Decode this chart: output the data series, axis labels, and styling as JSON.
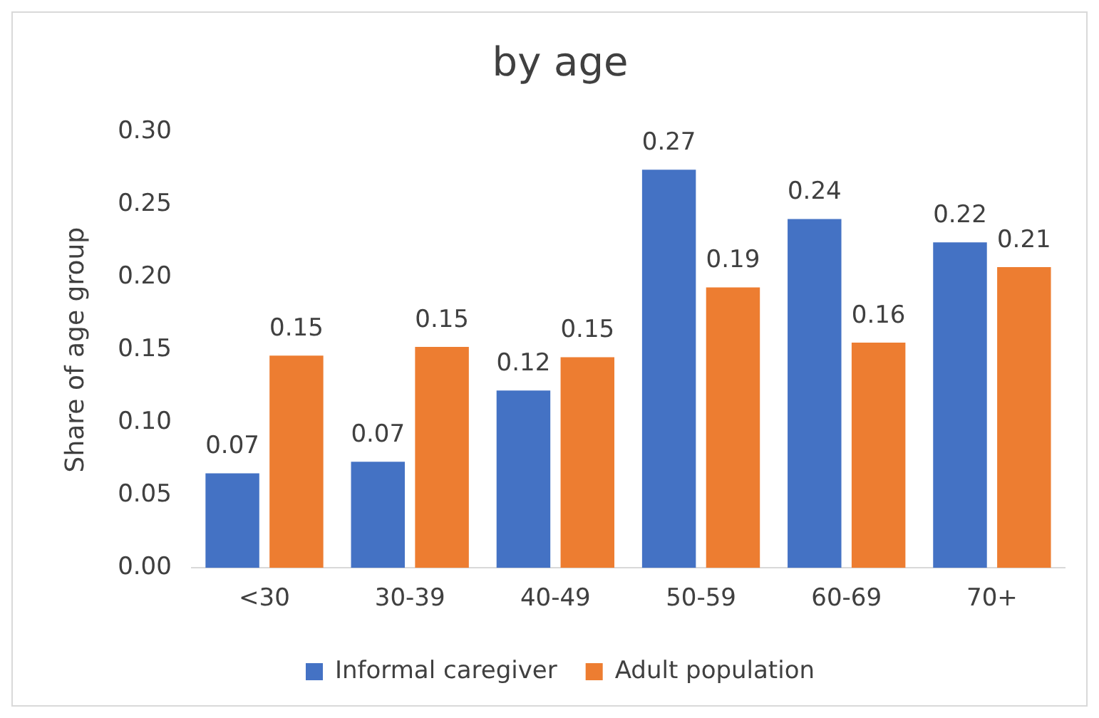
{
  "chart_data": {
    "type": "bar",
    "title": "by age",
    "ylabel": "Share of age group",
    "categories": [
      "<30",
      "30-39",
      "40-49",
      "50-59",
      "60-69",
      "70+"
    ],
    "series": [
      {
        "name": "Informal caregiver",
        "color": "#4472c4",
        "values": [
          0.065,
          0.073,
          0.122,
          0.274,
          0.24,
          0.224
        ],
        "value_labels": [
          "0.07",
          "0.07",
          "0.12",
          "0.27",
          "0.24",
          "0.22"
        ]
      },
      {
        "name": "Adult population",
        "color": "#ed7d31",
        "values": [
          0.146,
          0.152,
          0.145,
          0.193,
          0.155,
          0.207
        ],
        "value_labels": [
          "0.15",
          "0.15",
          "0.15",
          "0.19",
          "0.16",
          "0.21"
        ]
      }
    ],
    "ylim": [
      0,
      0.3
    ],
    "yticks": [
      {
        "value": 0,
        "label": "0.00"
      },
      {
        "value": 0.05,
        "label": "0.05"
      },
      {
        "value": 0.1,
        "label": "0.10"
      },
      {
        "value": 0.15,
        "label": "0.15"
      },
      {
        "value": 0.2,
        "label": "0.20"
      },
      {
        "value": 0.25,
        "label": "0.25"
      },
      {
        "value": 0.3,
        "label": "0.30"
      }
    ],
    "grid": false,
    "legend": "bottom"
  }
}
